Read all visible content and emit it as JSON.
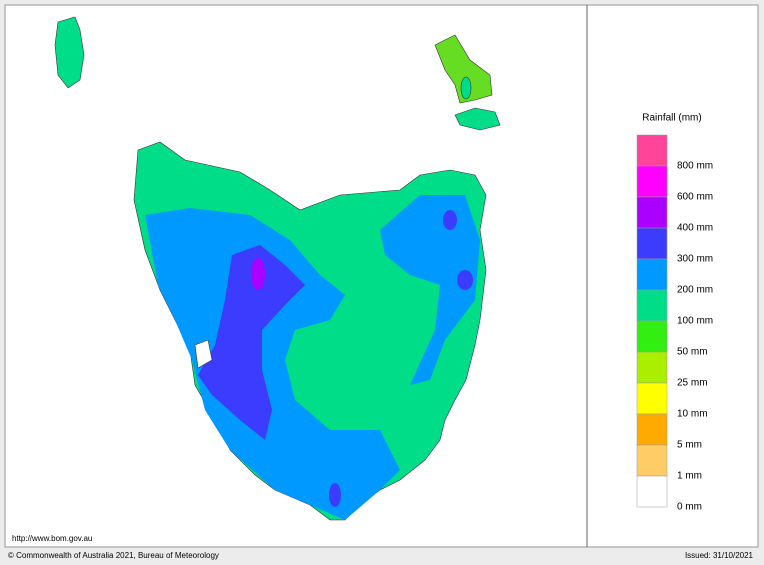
{
  "legend": {
    "title": "Rainfall (mm)",
    "items": [
      {
        "label": null,
        "color": "#ff4499"
      },
      {
        "label": "800 mm",
        "color": "#ff00ff"
      },
      {
        "label": "600 mm",
        "color": "#aa00ff"
      },
      {
        "label": "400 mm",
        "color": "#3c3cff"
      },
      {
        "label": "300 mm",
        "color": "#0099ff"
      },
      {
        "label": "200 mm",
        "color": "#00dd88"
      },
      {
        "label": "100 mm",
        "color": "#33ee11"
      },
      {
        "label": "50 mm",
        "color": "#aaee00"
      },
      {
        "label": "25 mm",
        "color": "#ffff00"
      },
      {
        "label": "10 mm",
        "color": "#ffaa00"
      },
      {
        "label": "5 mm",
        "color": "#ffcc66"
      },
      {
        "label": "1 mm",
        "color": "#ffffff"
      }
    ],
    "last_label": "0 mm"
  },
  "map": {
    "url": "http://www.bom.gov.au"
  },
  "footer": {
    "copyright": "© Commonwealth of Australia 2021, Bureau of Meteorology",
    "issued": "Issued: 31/10/2021"
  }
}
